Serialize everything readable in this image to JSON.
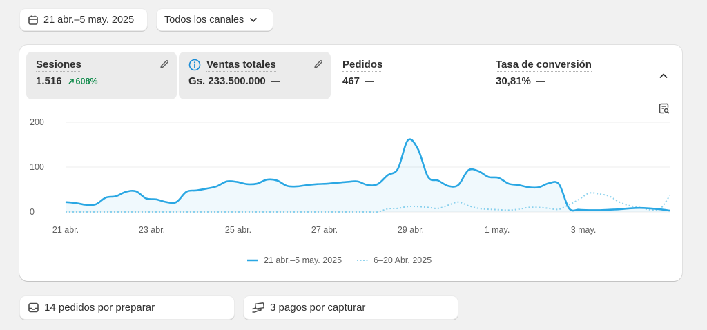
{
  "toolbar": {
    "date_range": "21 abr.–5 may. 2025",
    "channel": "Todos los canales"
  },
  "metrics": [
    {
      "label": "Sesiones",
      "value": "1.516",
      "change": "608%"
    },
    {
      "label": "Ventas totales",
      "value": "Gs. 233.500.000"
    },
    {
      "label": "Pedidos",
      "value": "467"
    },
    {
      "label": "Tasa de conversión",
      "value": "30,81%"
    }
  ],
  "legend": {
    "current": "21 abr.–5 may. 2025",
    "previous": "6–20 Abr, 2025"
  },
  "chart_data": {
    "type": "line",
    "x_labels": [
      "21 abr.",
      "23 abr.",
      "25 abr.",
      "27 abr.",
      "29 abr.",
      "1 may.",
      "3 may."
    ],
    "y_ticks": [
      0,
      100,
      200
    ],
    "ylim": [
      0,
      200
    ],
    "grid": true,
    "legend_position": "bottom-center",
    "colors": {
      "current": "#2aa7e3",
      "previous": "#8fd3ee"
    },
    "series": [
      {
        "name": "21 abr.–5 may. 2025",
        "style": "solid",
        "values": [
          22,
          20,
          16,
          17,
          32,
          35,
          45,
          46,
          30,
          28,
          22,
          22,
          45,
          48,
          52,
          57,
          68,
          67,
          62,
          63,
          72,
          70,
          58,
          57,
          60,
          62,
          63,
          65,
          67,
          68,
          60,
          62,
          82,
          96,
          160,
          140,
          78,
          70,
          58,
          60,
          93,
          91,
          78,
          76,
          63,
          60,
          55,
          55,
          64,
          62,
          8,
          5,
          4,
          4,
          5,
          6,
          8,
          9,
          8,
          6,
          3
        ]
      },
      {
        "name": "6–20 Abr, 2025",
        "style": "dotted",
        "values": [
          0,
          0,
          0,
          0,
          0,
          0,
          0,
          0,
          0,
          0,
          0,
          0,
          0,
          0,
          0,
          0,
          0,
          0,
          0,
          0,
          0,
          0,
          0,
          0,
          0,
          0,
          0,
          0,
          0,
          0,
          0,
          0,
          7,
          8,
          12,
          12,
          10,
          8,
          15,
          22,
          14,
          8,
          6,
          5,
          4,
          6,
          10,
          10,
          8,
          6,
          16,
          28,
          42,
          40,
          35,
          22,
          14,
          10,
          5,
          6,
          36
        ]
      }
    ]
  },
  "bottom": {
    "orders_to_prepare": "14 pedidos por preparar",
    "payments_to_capture": "3 pagos por capturar"
  }
}
